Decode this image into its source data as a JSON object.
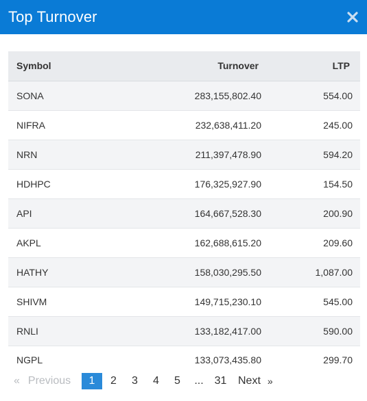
{
  "modal": {
    "title": "Top Turnover",
    "close_icon": "close-icon"
  },
  "table": {
    "headers": {
      "symbol": "Symbol",
      "turnover": "Turnover",
      "ltp": "LTP"
    },
    "rows": [
      {
        "symbol": "SONA",
        "turnover": "283,155,802.40",
        "ltp": "554.00"
      },
      {
        "symbol": "NIFRA",
        "turnover": "232,638,411.20",
        "ltp": "245.00"
      },
      {
        "symbol": "NRN",
        "turnover": "211,397,478.90",
        "ltp": "594.20"
      },
      {
        "symbol": "HDHPC",
        "turnover": "176,325,927.90",
        "ltp": "154.50"
      },
      {
        "symbol": "API",
        "turnover": "164,667,528.30",
        "ltp": "200.90"
      },
      {
        "symbol": "AKPL",
        "turnover": "162,688,615.20",
        "ltp": "209.60"
      },
      {
        "symbol": "HATHY",
        "turnover": "158,030,295.50",
        "ltp": "1,087.00"
      },
      {
        "symbol": "SHIVM",
        "turnover": "149,715,230.10",
        "ltp": "545.00"
      },
      {
        "symbol": "RNLI",
        "turnover": "133,182,417.00",
        "ltp": "590.00"
      },
      {
        "symbol": "NGPL",
        "turnover": "133,073,435.80",
        "ltp": "299.70"
      }
    ]
  },
  "pagination": {
    "prev_arrow": "«",
    "prev_label": "Previous",
    "pages": [
      "1",
      "2",
      "3",
      "4",
      "5"
    ],
    "ellipsis": "...",
    "last_page": "31",
    "next_label": "Next",
    "next_arrow": "»",
    "current": "1"
  },
  "colors": {
    "header_bg": "#0a7bd6",
    "active_page_bg": "#2a8ad9",
    "row_stripe": "#f3f4f6"
  }
}
